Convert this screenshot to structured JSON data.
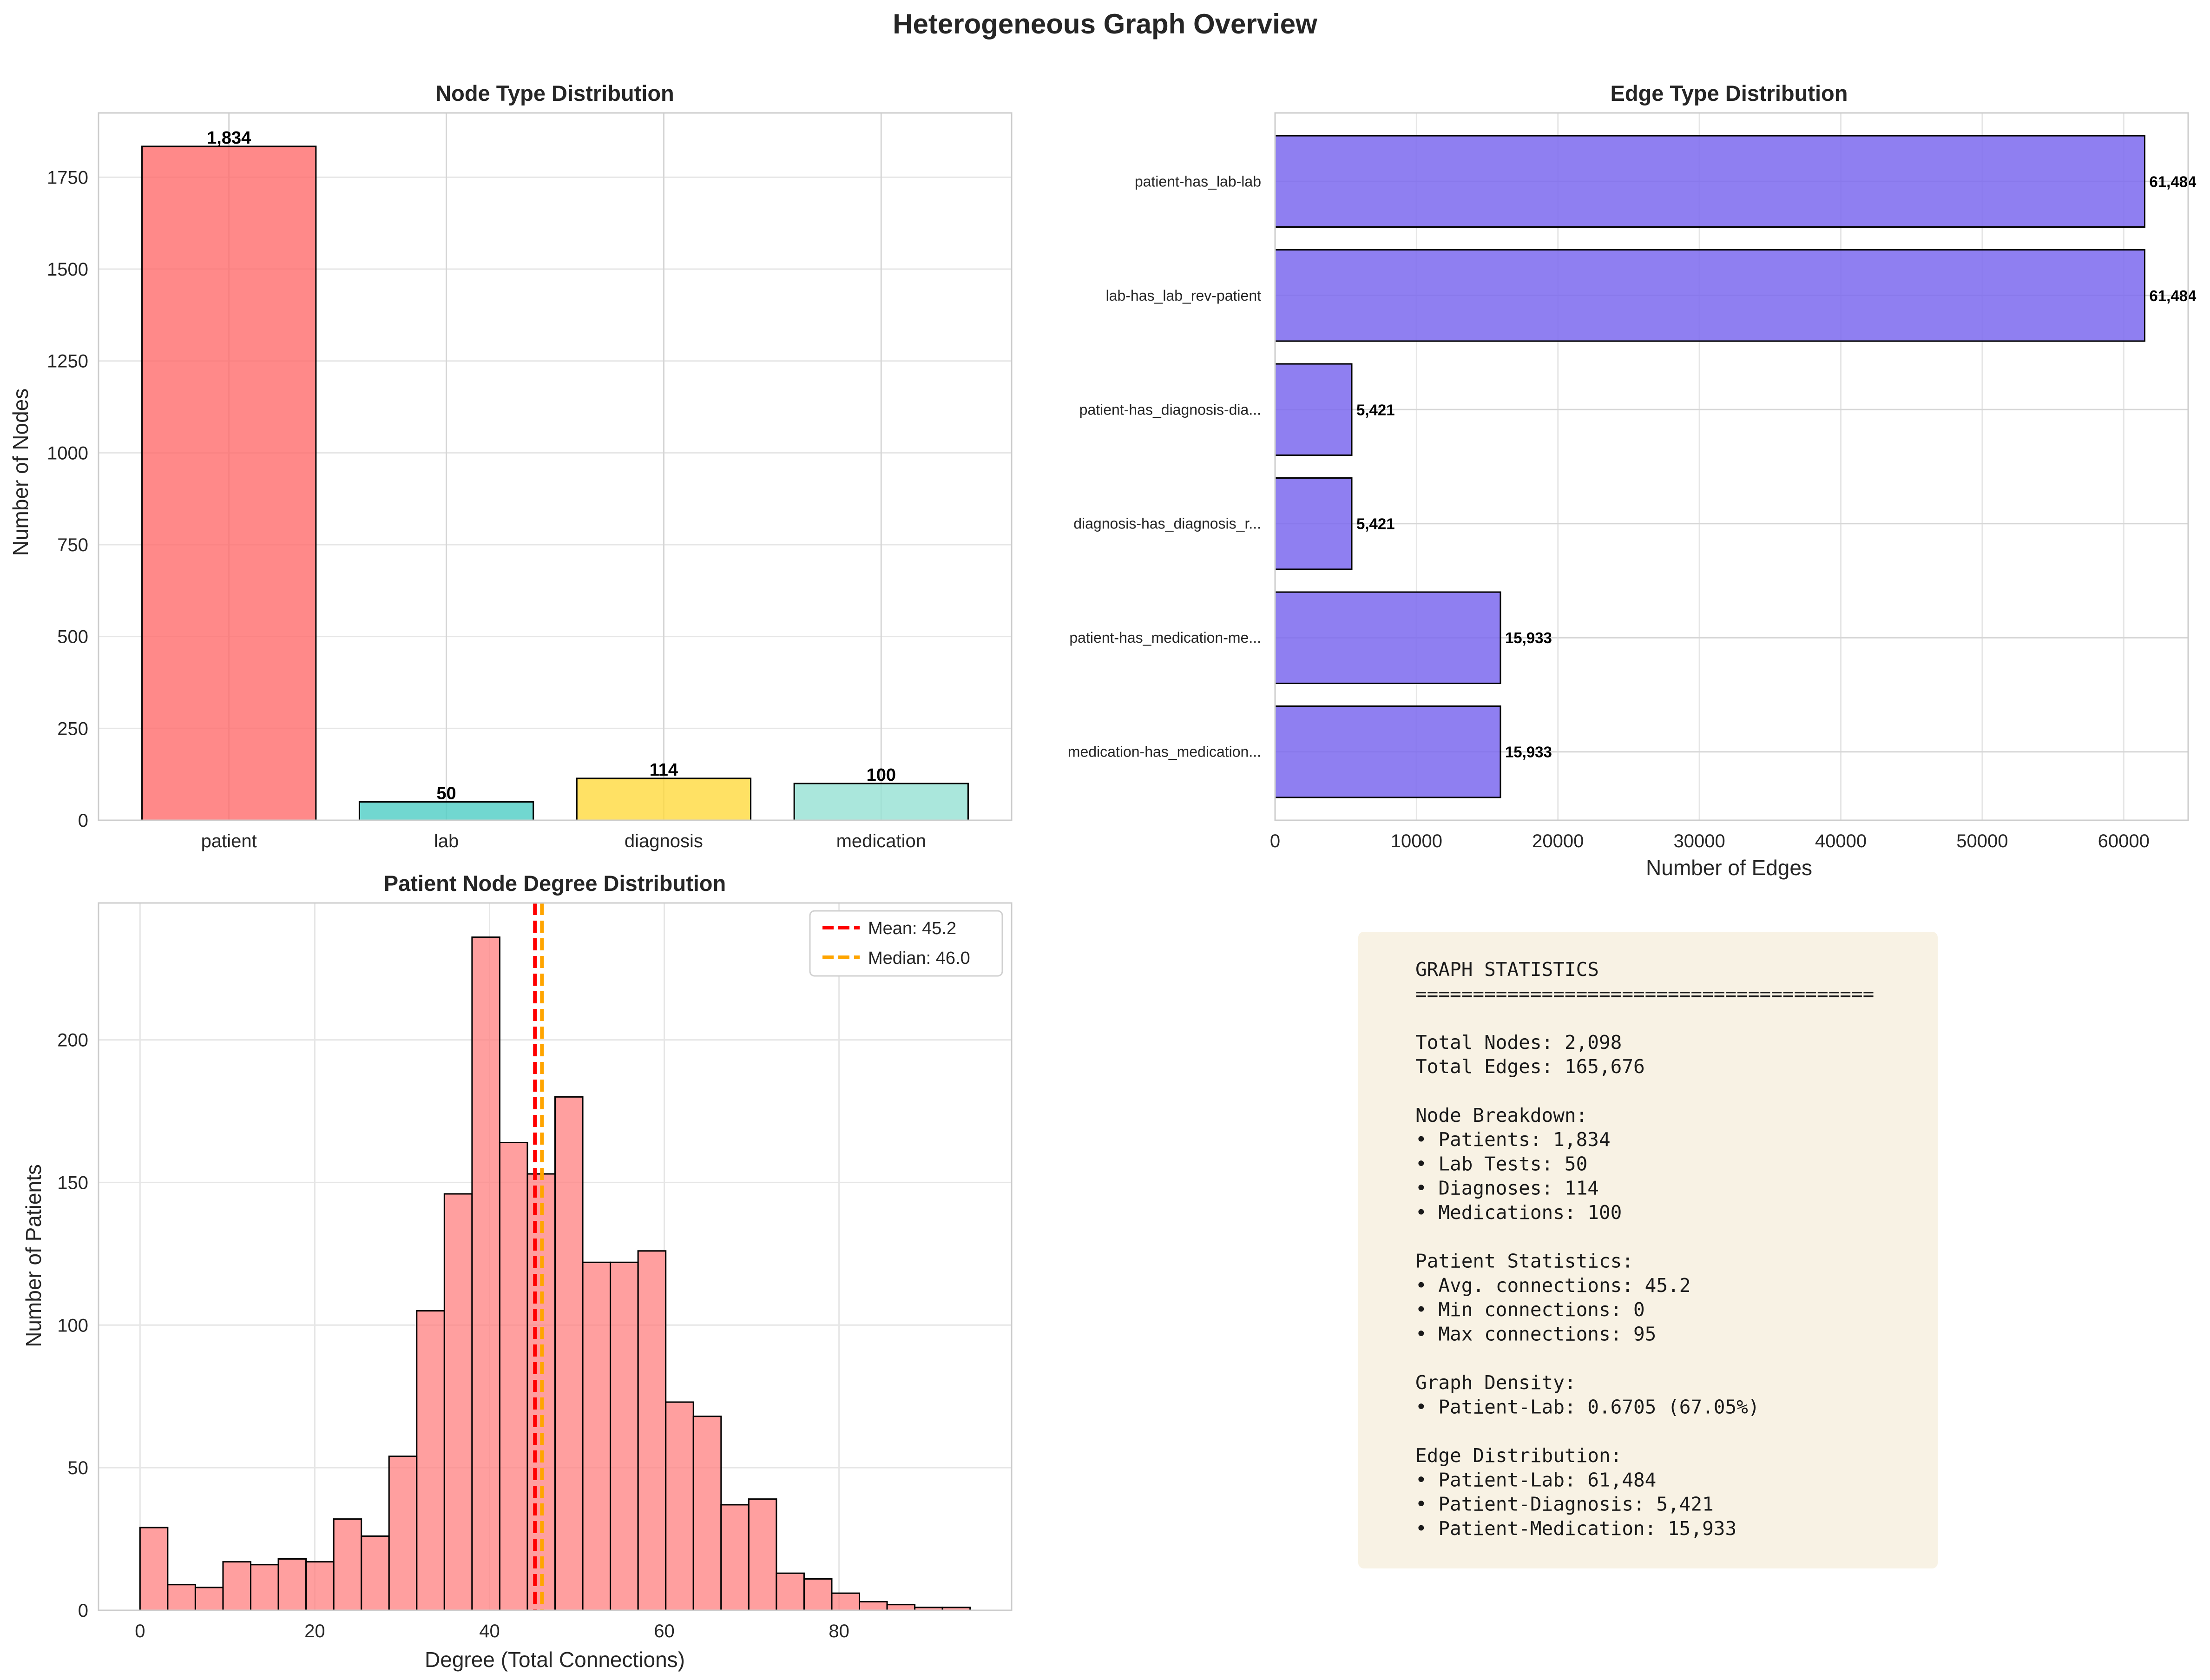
{
  "figure": {
    "title": "Heterogeneous Graph Overview"
  },
  "colors": {
    "patient": "#ff6b6b",
    "lab": "#4ecdc4",
    "diagnosis": "#ffd93d",
    "medication": "#95e1d3",
    "edge_bar": "#7b68ee",
    "hist": "#ff7f7f",
    "mean_line": "#ff0000",
    "median_line": "#ffa500",
    "stats_box": "#f8f2e4",
    "grid": "#e6e6e6",
    "spine": "#cccccc",
    "text": "#262626"
  },
  "chart_data": [
    {
      "type": "bar",
      "title": "Node Type Distribution",
      "xlabel": "",
      "ylabel": "Number of Nodes",
      "categories": [
        "patient",
        "lab",
        "diagnosis",
        "medication"
      ],
      "values": [
        1834,
        50,
        114,
        100
      ],
      "value_labels": [
        "1,834",
        "50",
        "114",
        "100"
      ],
      "ylim": [
        0,
        1925
      ],
      "yticks": [
        0,
        250,
        500,
        750,
        1000,
        1250,
        1500,
        1750
      ],
      "grid": true
    },
    {
      "type": "bar",
      "orientation": "horizontal",
      "title": "Edge Type Distribution",
      "xlabel": "Number of Edges",
      "ylabel": "",
      "categories": [
        "patient-has_lab-lab",
        "lab-has_lab_rev-patient",
        "patient-has_diagnosis-dia...",
        "diagnosis-has_diagnosis_r...",
        "patient-has_medication-me...",
        "medication-has_medication..."
      ],
      "values": [
        61484,
        61484,
        5421,
        5421,
        15933,
        15933
      ],
      "value_labels": [
        "61,484",
        "61,484",
        "5,421",
        "5,421",
        "15,933",
        "15,933"
      ],
      "xlim": [
        0,
        64558
      ],
      "xticks": [
        0,
        10000,
        20000,
        30000,
        40000,
        50000,
        60000
      ],
      "grid": true
    },
    {
      "type": "histogram",
      "title": "Patient Node Degree Distribution",
      "xlabel": "Degree (Total Connections)",
      "ylabel": "Number of Patients",
      "bin_start": 0,
      "bin_width": 3.1667,
      "counts": [
        29,
        9,
        8,
        17,
        16,
        18,
        17,
        32,
        26,
        54,
        105,
        146,
        236,
        164,
        153,
        180,
        122,
        122,
        126,
        73,
        68,
        37,
        39,
        13,
        11,
        6,
        3,
        2,
        1,
        1
      ],
      "xlim": [
        -4.75,
        99.75
      ],
      "ylim": [
        0,
        248
      ],
      "xticks": [
        0,
        20,
        40,
        60,
        80
      ],
      "yticks": [
        0,
        50,
        100,
        150,
        200
      ],
      "mean": 45.2,
      "median": 46.0,
      "legend": [
        "Mean: 45.2",
        "Median: 46.0"
      ],
      "legend_position": "top-right",
      "grid": true
    }
  ],
  "stats": {
    "lines": [
      "GRAPH STATISTICS",
      "========================================",
      "",
      "Total Nodes: 2,098",
      "Total Edges: 165,676",
      "",
      "Node Breakdown:",
      "• Patients: 1,834",
      "• Lab Tests: 50",
      "• Diagnoses: 114",
      "• Medications: 100",
      "",
      "Patient Statistics:",
      "• Avg. connections: 45.2",
      "• Min connections: 0",
      "• Max connections: 95",
      "",
      "Graph Density:",
      "• Patient-Lab: 0.6705 (67.05%)",
      "",
      "Edge Distribution:",
      "• Patient-Lab: 61,484",
      "• Patient-Diagnosis: 5,421",
      "• Patient-Medication: 15,933"
    ]
  }
}
